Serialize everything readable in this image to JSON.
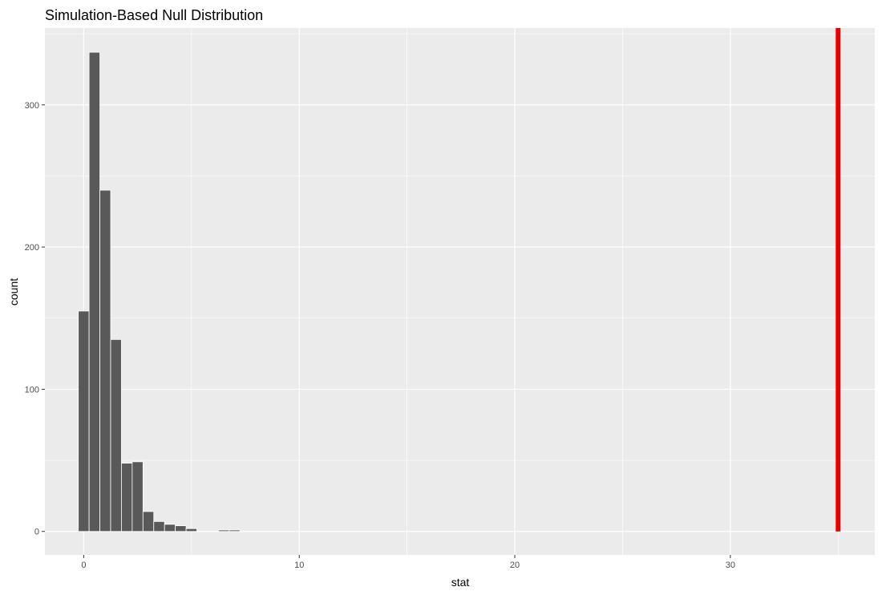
{
  "chart_data": {
    "type": "histogram",
    "title": "Simulation-Based Null Distribution",
    "xlabel": "stat",
    "ylabel": "count",
    "xlim": [
      -1.8,
      36.7
    ],
    "ylim": [
      -16.5,
      354
    ],
    "x_ticks": [
      0,
      10,
      20,
      30
    ],
    "y_ticks": [
      0,
      100,
      200,
      300
    ],
    "bin_width": 0.5,
    "bins": [
      {
        "start": -0.25,
        "end": 0.25,
        "count": 155
      },
      {
        "start": 0.25,
        "end": 0.75,
        "count": 337
      },
      {
        "start": 0.75,
        "end": 1.25,
        "count": 240
      },
      {
        "start": 1.25,
        "end": 1.75,
        "count": 135
      },
      {
        "start": 1.75,
        "end": 2.25,
        "count": 48
      },
      {
        "start": 2.25,
        "end": 2.75,
        "count": 49
      },
      {
        "start": 2.75,
        "end": 3.25,
        "count": 14
      },
      {
        "start": 3.25,
        "end": 3.75,
        "count": 7
      },
      {
        "start": 3.75,
        "end": 4.25,
        "count": 5
      },
      {
        "start": 4.25,
        "end": 4.75,
        "count": 4
      },
      {
        "start": 4.75,
        "end": 5.25,
        "count": 2
      },
      {
        "start": 5.25,
        "end": 5.75,
        "count": 0
      },
      {
        "start": 5.75,
        "end": 6.25,
        "count": 0
      },
      {
        "start": 6.25,
        "end": 6.75,
        "count": 1
      },
      {
        "start": 6.75,
        "end": 7.25,
        "count": 1
      }
    ],
    "observed_stat": 35,
    "observed_line_color": "#e60000",
    "bar_fill": "#595959",
    "bar_outline": "#ffffff",
    "panel_background": "#ebebeb",
    "grid": true,
    "legend": "none"
  }
}
